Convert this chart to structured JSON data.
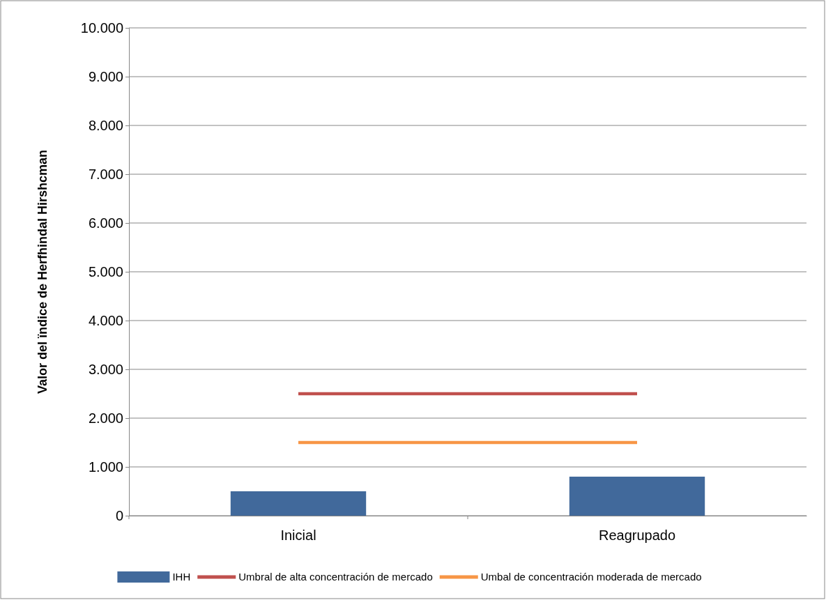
{
  "chart_data": {
    "type": "bar",
    "ylabel": "Valor del ïndice de Herfhindal Hirshcman",
    "categories": [
      "Inicial",
      "Reagrupado"
    ],
    "series": [
      {
        "name": "IHH",
        "color": "#41699b",
        "values": [
          500,
          800
        ]
      },
      {
        "name": "Umbral de alta concentración de mercado",
        "type": "line",
        "color": "#c0504d",
        "values": [
          2500,
          2500
        ]
      },
      {
        "name": "Umbal de concentración moderada de mercado",
        "type": "line",
        "color": "#f79646",
        "values": [
          1500,
          1500
        ]
      }
    ],
    "ylim": [
      0,
      10000
    ],
    "yticks": [
      0,
      {
        "value": 1000,
        "label": "1.000"
      },
      {
        "value": 2000,
        "label": "2.000"
      },
      {
        "value": 3000,
        "label": "3.000"
      },
      {
        "value": 4000,
        "label": "4.000"
      },
      {
        "value": 5000,
        "label": "5.000"
      },
      {
        "value": 6000,
        "label": "6.000"
      },
      {
        "value": 7000,
        "label": "7.000"
      },
      {
        "value": 8000,
        "label": "8.000"
      },
      {
        "value": 9000,
        "label": "9.000"
      },
      {
        "value": 10000,
        "label": "10.000"
      }
    ],
    "grid": "y",
    "legend": "bottom",
    "marker": "none",
    "line_style": "solid"
  }
}
